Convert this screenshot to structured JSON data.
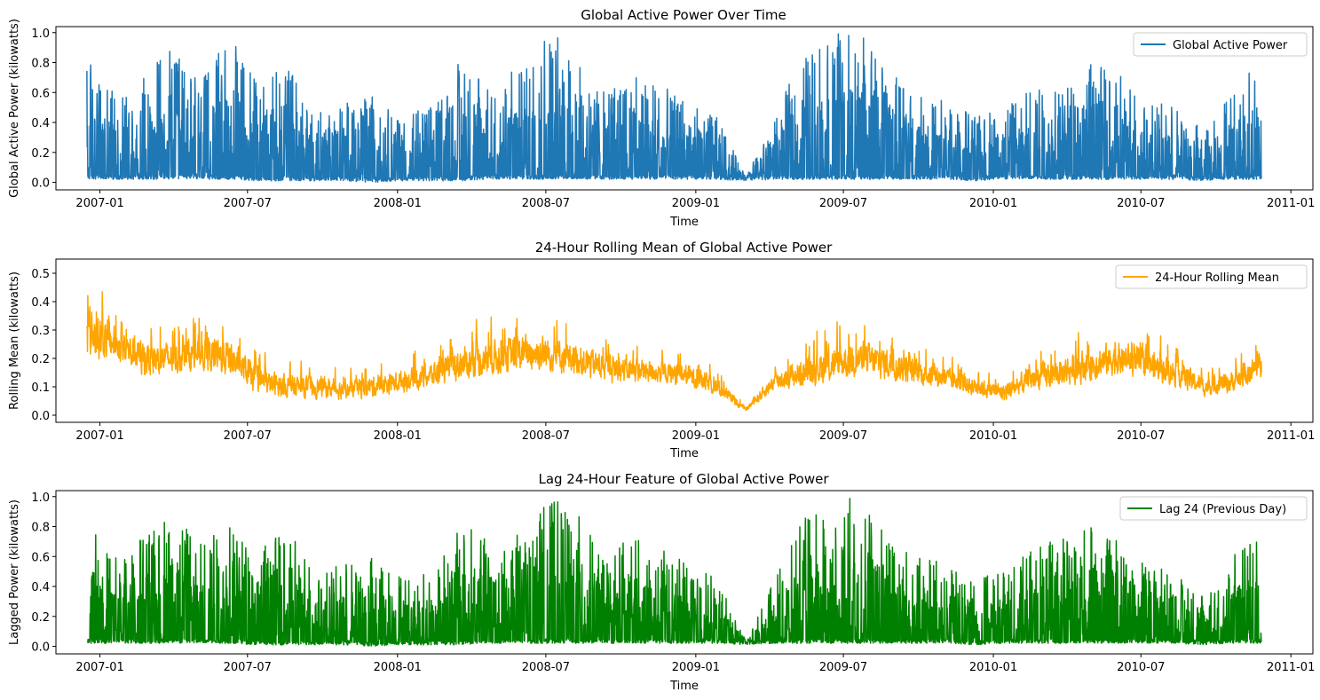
{
  "chart_data": [
    {
      "type": "line",
      "title": "Global Active Power Over Time",
      "xlabel": "Time",
      "ylabel": "Global Active Power (kilowatts)",
      "x_ticks": [
        "2007-01",
        "2007-07",
        "2008-01",
        "2008-07",
        "2009-01",
        "2009-07",
        "2010-01",
        "2010-07",
        "2011-01"
      ],
      "y_ticks": [
        "0.0",
        "0.2",
        "0.4",
        "0.6",
        "0.8",
        "1.0"
      ],
      "xlim": [
        "2006-11-08",
        "2011-01-28"
      ],
      "ylim": [
        -0.05,
        1.04
      ],
      "legend_position": "upper right",
      "series": [
        {
          "name": "Global Active Power",
          "color": "#1f77b4",
          "x_range": [
            "2006-12-16",
            "2010-11-26"
          ],
          "max_envelope": [
            0.85,
            0.6,
            0.75,
            0.9,
            0.7,
            0.97,
            0.65,
            0.8,
            0.5,
            0.55,
            0.6,
            0.45,
            0.5,
            0.85,
            0.7,
            0.75,
            0.99,
            0.95,
            0.6,
            0.75,
            0.65,
            0.55,
            0.45,
            0.03,
            0.45,
            0.85,
            1.0,
            0.99,
            0.75,
            0.6,
            0.55,
            0.45,
            0.5,
            0.65,
            0.75,
            0.8,
            0.75,
            0.55,
            0.5,
            0.35,
            0.6,
            0.85
          ],
          "min_envelope": [
            0.02,
            0.02,
            0.02,
            0.02,
            0.02,
            0.02,
            0.01,
            0.01,
            0.01,
            0.01,
            0.0,
            0.01,
            0.01,
            0.01,
            0.02,
            0.02,
            0.02,
            0.02,
            0.02,
            0.02,
            0.02,
            0.02,
            0.02,
            0.01,
            0.02,
            0.02,
            0.02,
            0.02,
            0.02,
            0.02,
            0.02,
            0.01,
            0.02,
            0.02,
            0.02,
            0.02,
            0.02,
            0.02,
            0.02,
            0.01,
            0.02,
            0.02
          ]
        }
      ]
    },
    {
      "type": "line",
      "title": "24-Hour Rolling Mean of Global Active Power",
      "xlabel": "Time",
      "ylabel": "Rolling Mean (kilowatts)",
      "x_ticks": [
        "2007-01",
        "2007-07",
        "2008-01",
        "2008-07",
        "2009-01",
        "2009-07",
        "2010-01",
        "2010-07",
        "2011-01"
      ],
      "y_ticks": [
        "0.0",
        "0.1",
        "0.2",
        "0.3",
        "0.4",
        "0.5"
      ],
      "xlim": [
        "2006-11-08",
        "2011-01-28"
      ],
      "ylim": [
        -0.025,
        0.55
      ],
      "legend_position": "upper right",
      "series": [
        {
          "name": "24-Hour Rolling Mean",
          "color": "#ffa500",
          "x_range": [
            "2006-12-16",
            "2010-11-26"
          ],
          "level": [
            0.3,
            0.25,
            0.2,
            0.2,
            0.22,
            0.2,
            0.12,
            0.1,
            0.1,
            0.09,
            0.1,
            0.12,
            0.14,
            0.18,
            0.2,
            0.22,
            0.22,
            0.2,
            0.17,
            0.16,
            0.15,
            0.14,
            0.1,
            0.02,
            0.12,
            0.15,
            0.18,
            0.2,
            0.18,
            0.15,
            0.13,
            0.1,
            0.08,
            0.13,
            0.15,
            0.18,
            0.2,
            0.18,
            0.15,
            0.1,
            0.12,
            0.17
          ],
          "spread": [
            0.15,
            0.1,
            0.1,
            0.09,
            0.1,
            0.1,
            0.07,
            0.06,
            0.06,
            0.05,
            0.06,
            0.06,
            0.07,
            0.09,
            0.1,
            0.1,
            0.1,
            0.09,
            0.08,
            0.07,
            0.06,
            0.06,
            0.05,
            0.01,
            0.05,
            0.08,
            0.1,
            0.1,
            0.09,
            0.07,
            0.06,
            0.05,
            0.05,
            0.07,
            0.08,
            0.09,
            0.09,
            0.08,
            0.07,
            0.05,
            0.06,
            0.08
          ]
        }
      ]
    },
    {
      "type": "line",
      "title": "Lag 24-Hour Feature of Global Active Power",
      "xlabel": "Time",
      "ylabel": "Lagged Power (kilowatts)",
      "x_ticks": [
        "2007-01",
        "2007-07",
        "2008-01",
        "2008-07",
        "2009-01",
        "2009-07",
        "2010-01",
        "2010-07",
        "2011-01"
      ],
      "y_ticks": [
        "0.0",
        "0.2",
        "0.4",
        "0.6",
        "0.8",
        "1.0"
      ],
      "xlim": [
        "2006-11-08",
        "2011-01-28"
      ],
      "ylim": [
        -0.05,
        1.04
      ],
      "legend_position": "upper right",
      "series": [
        {
          "name": "Lag 24 (Previous Day)",
          "color": "#008000",
          "x_range": [
            "2006-12-17",
            "2010-11-26"
          ],
          "max_envelope": [
            0.85,
            0.6,
            0.75,
            0.9,
            0.7,
            0.97,
            0.65,
            0.8,
            0.5,
            0.55,
            0.6,
            0.45,
            0.5,
            0.85,
            0.7,
            0.75,
            0.99,
            0.95,
            0.6,
            0.75,
            0.65,
            0.55,
            0.45,
            0.03,
            0.45,
            0.85,
            1.0,
            0.99,
            0.75,
            0.6,
            0.55,
            0.45,
            0.5,
            0.65,
            0.75,
            0.8,
            0.75,
            0.55,
            0.5,
            0.35,
            0.6,
            0.85
          ],
          "min_envelope": [
            0.02,
            0.02,
            0.02,
            0.02,
            0.02,
            0.02,
            0.01,
            0.01,
            0.01,
            0.01,
            0.0,
            0.01,
            0.01,
            0.01,
            0.02,
            0.02,
            0.02,
            0.02,
            0.02,
            0.02,
            0.02,
            0.02,
            0.02,
            0.01,
            0.02,
            0.02,
            0.02,
            0.02,
            0.02,
            0.02,
            0.02,
            0.01,
            0.02,
            0.02,
            0.02,
            0.02,
            0.02,
            0.02,
            0.02,
            0.01,
            0.02,
            0.02
          ]
        }
      ]
    }
  ]
}
